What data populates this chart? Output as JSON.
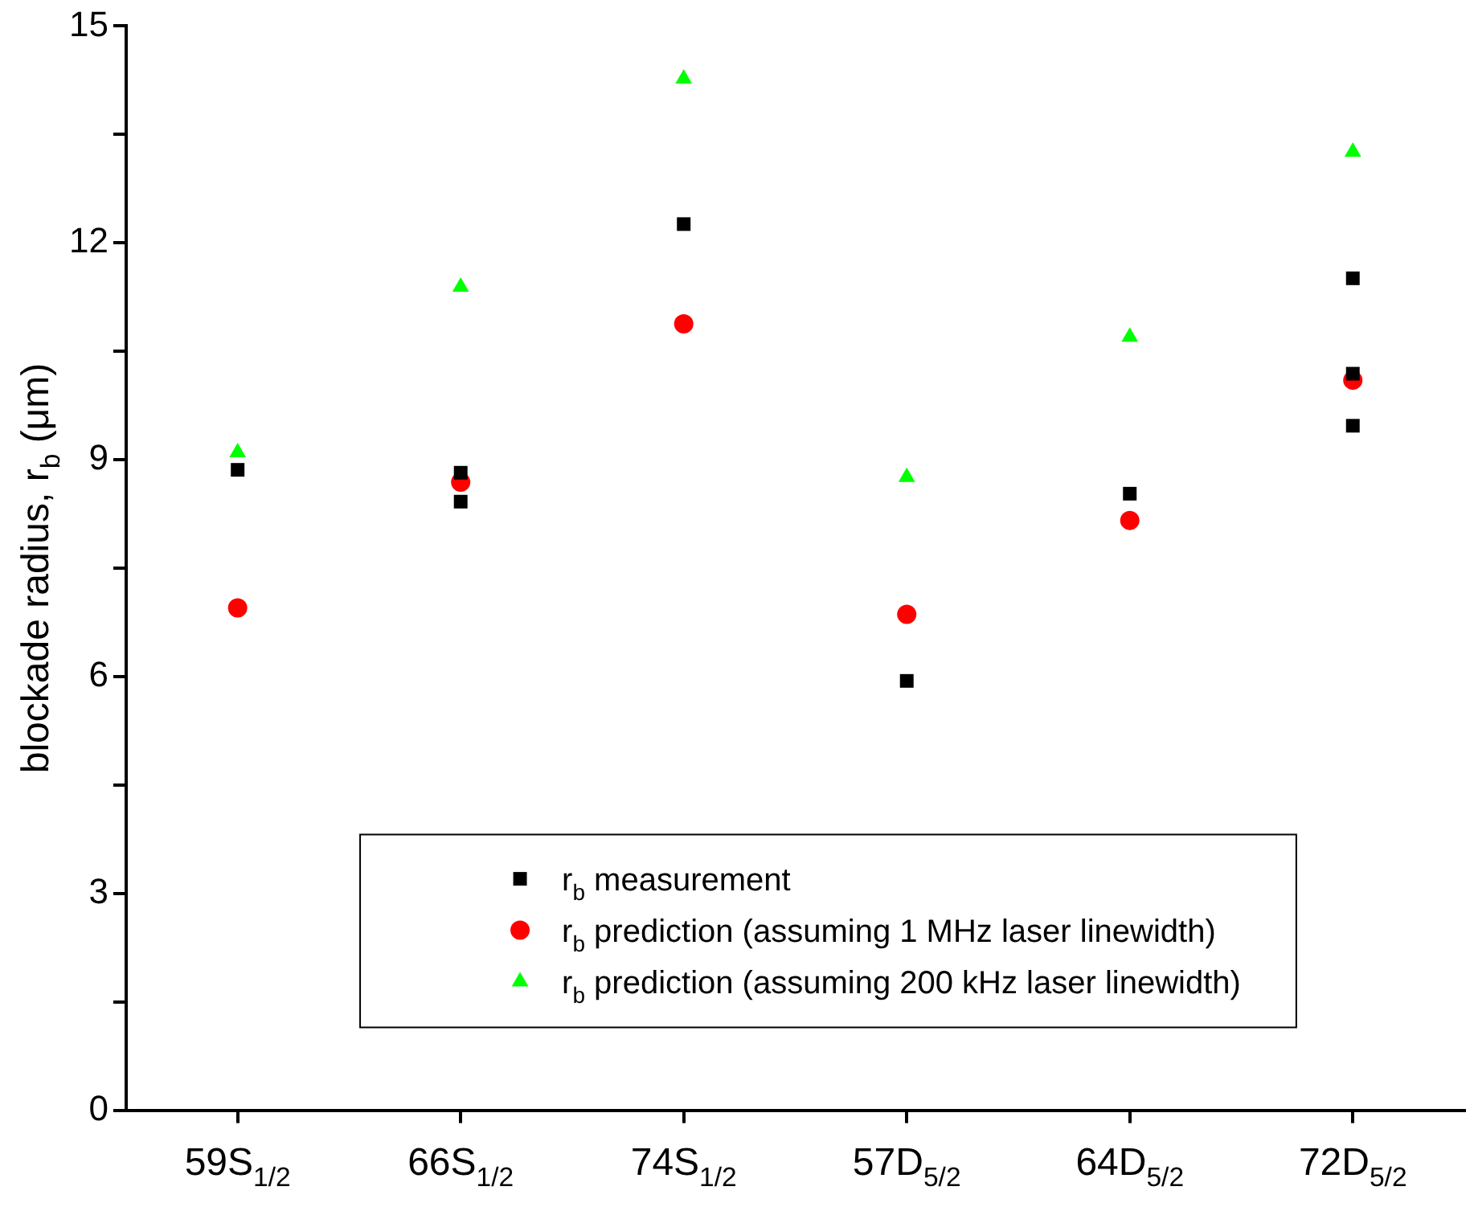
{
  "chart_data": {
    "type": "scatter",
    "ylabel": "blockade radius, r$_{b}$ (μm)",
    "categories": [
      "59S$_{1/2}$",
      "66S$_{1/2}$",
      "74S$_{1/2}$",
      "57D$_{5/2}$",
      "64D$_{5/2}$",
      "72D$_{5/2}$"
    ],
    "series": [
      {
        "name": "r$_{b}$ measurement",
        "color": "#000000",
        "marker": "square",
        "x": [
          "59S$_{1/2}$",
          "66S$_{1/2}$",
          "66S$_{1/2}$",
          "74S$_{1/2}$",
          "57D$_{5/2}$",
          "64D$_{5/2}$",
          "72D$_{5/2}$",
          "72D$_{5/2}$",
          "72D$_{5/2}$"
        ],
        "values": [
          8.86,
          8.82,
          8.42,
          12.26,
          5.94,
          8.53,
          11.51,
          10.19,
          9.47
        ]
      },
      {
        "name": "r$_{b}$ prediction (assuming 1 MHz laser linewidth)",
        "color": "#ff0000",
        "marker": "circle",
        "values": [
          6.95,
          8.69,
          10.88,
          6.86,
          8.16,
          10.1
        ]
      },
      {
        "name": "r$_{b}$ prediction (assuming 200 kHz laser linewidth)",
        "color": "#00ff00",
        "marker": "triangle",
        "values": [
          9.1,
          11.39,
          14.27,
          8.76,
          10.7,
          13.26
        ]
      }
    ],
    "ylim": [
      0,
      15
    ],
    "yticks": [
      0,
      {
        "value": 1.5,
        "label": null
      },
      3,
      {
        "value": 4.5,
        "label": null
      },
      6,
      {
        "value": 7.5,
        "label": null
      },
      9,
      {
        "value": 10.5,
        "label": null
      },
      12,
      {
        "value": 13.5,
        "label": null
      },
      15
    ],
    "grid": false,
    "legend": "bottom"
  }
}
